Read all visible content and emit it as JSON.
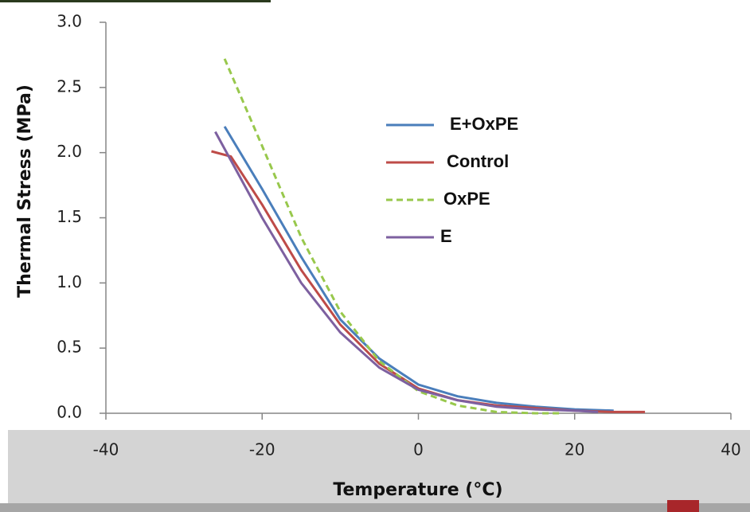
{
  "chart_data": {
    "type": "line",
    "xlabel": "Temperature (°C)",
    "ylabel": "Thermal Stress (MPa)",
    "xlim": [
      -40,
      40
    ],
    "xticks": [
      -40,
      -20,
      0,
      20,
      40
    ],
    "ylim": [
      0,
      3
    ],
    "yticks": [
      {
        "value": 0,
        "label": "0.0"
      },
      0.5,
      {
        "value": 1,
        "label": "1.0"
      },
      1.5,
      {
        "value": 2,
        "label": "2.0"
      },
      2.5,
      {
        "value": 3,
        "label": "3.0"
      }
    ],
    "legend_position": "upper-center",
    "series": [
      {
        "name": "E+OxPE",
        "color": "#4a7ebb",
        "dash": "solid",
        "x": [
          -24.8,
          -20,
          -15,
          -10,
          -5,
          0,
          5,
          10,
          15,
          20,
          25
        ],
        "values": [
          2.2,
          1.72,
          1.2,
          0.72,
          0.42,
          0.22,
          0.13,
          0.08,
          0.05,
          0.03,
          0.02
        ]
      },
      {
        "name": "Control",
        "color": "#be4b48",
        "dash": "solid",
        "x": [
          -26.5,
          -24,
          -20,
          -15,
          -10,
          -5,
          0,
          5,
          10,
          15,
          20,
          25,
          29
        ],
        "values": [
          2.01,
          1.97,
          1.6,
          1.1,
          0.68,
          0.38,
          0.19,
          0.1,
          0.06,
          0.04,
          0.02,
          0.01,
          0.01
        ]
      },
      {
        "name": "OxPE",
        "color": "#98c84c",
        "dash": "dashed",
        "x": [
          -24.8,
          -20,
          -15,
          -10,
          -5,
          0,
          5,
          10,
          15,
          18
        ],
        "values": [
          2.72,
          2.05,
          1.35,
          0.78,
          0.4,
          0.17,
          0.06,
          0.01,
          0,
          0
        ]
      },
      {
        "name": "E",
        "color": "#7d60a0",
        "dash": "solid",
        "x": [
          -26,
          -20,
          -15,
          -10,
          -5,
          0,
          5,
          10,
          15,
          20,
          23
        ],
        "values": [
          2.16,
          1.5,
          1.0,
          0.62,
          0.35,
          0.18,
          0.1,
          0.05,
          0.03,
          0.02,
          0.01
        ]
      }
    ]
  }
}
